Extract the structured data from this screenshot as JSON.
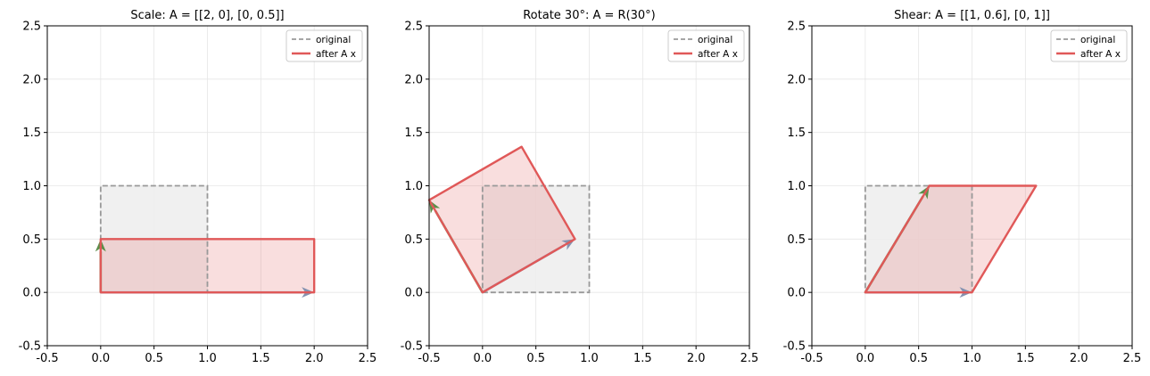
{
  "colors": {
    "original_stroke": "#999999",
    "original_fill": "#eeeeee",
    "transformed_stroke": "#e05858",
    "transformed_fill": "#f8dada",
    "e1_arrow": "#8492b0",
    "e2_arrow": "#5a8f4a",
    "grid": "#e6e6e6"
  },
  "chart_data": [
    {
      "type": "line",
      "title": "Scale: A = [[2, 0], [0, 0.5]]",
      "xlim": [
        -0.5,
        2.5
      ],
      "ylim": [
        -0.5,
        2.5
      ],
      "xticks": [
        "-0.5",
        "0.0",
        "0.5",
        "1.0",
        "1.5",
        "2.0",
        "2.5"
      ],
      "yticks": [
        "-0.5",
        "0.0",
        "0.5",
        "1.0",
        "1.5",
        "2.0",
        "2.5"
      ],
      "grid": true,
      "legend": {
        "position": "top-right",
        "entries": [
          "original",
          "after A x"
        ]
      },
      "original_polygon": [
        [
          0,
          0
        ],
        [
          1,
          0
        ],
        [
          1,
          1
        ],
        [
          0,
          1
        ]
      ],
      "transformed_polygon": [
        [
          0,
          0
        ],
        [
          2,
          0
        ],
        [
          2,
          0.5
        ],
        [
          0,
          0.5
        ]
      ],
      "basis_vectors": {
        "e1": [
          2,
          0
        ],
        "e2": [
          0,
          0.5
        ]
      }
    },
    {
      "type": "line",
      "title": "Rotate 30°: A = R(30°)",
      "xlim": [
        -0.5,
        2.5
      ],
      "ylim": [
        -0.5,
        2.5
      ],
      "xticks": [
        "-0.5",
        "0.0",
        "0.5",
        "1.0",
        "1.5",
        "2.0",
        "2.5"
      ],
      "yticks": [
        "-0.5",
        "0.0",
        "0.5",
        "1.0",
        "1.5",
        "2.0",
        "2.5"
      ],
      "grid": true,
      "legend": {
        "position": "top-right",
        "entries": [
          "original",
          "after A x"
        ]
      },
      "original_polygon": [
        [
          0,
          0
        ],
        [
          1,
          0
        ],
        [
          1,
          1
        ],
        [
          0,
          1
        ]
      ],
      "transformed_polygon": [
        [
          0,
          0
        ],
        [
          0.866,
          0.5
        ],
        [
          0.366,
          1.366
        ],
        [
          -0.5,
          0.866
        ]
      ],
      "basis_vectors": {
        "e1": [
          0.866,
          0.5
        ],
        "e2": [
          -0.5,
          0.866
        ]
      }
    },
    {
      "type": "line",
      "title": "Shear: A = [[1, 0.6], [0, 1]]",
      "xlim": [
        -0.5,
        2.5
      ],
      "ylim": [
        -0.5,
        2.5
      ],
      "xticks": [
        "-0.5",
        "0.0",
        "0.5",
        "1.0",
        "1.5",
        "2.0",
        "2.5"
      ],
      "yticks": [
        "-0.5",
        "0.0",
        "0.5",
        "1.0",
        "1.5",
        "2.0",
        "2.5"
      ],
      "grid": true,
      "legend": {
        "position": "top-right",
        "entries": [
          "original",
          "after A x"
        ]
      },
      "original_polygon": [
        [
          0,
          0
        ],
        [
          1,
          0
        ],
        [
          1,
          1
        ],
        [
          0,
          1
        ]
      ],
      "transformed_polygon": [
        [
          0,
          0
        ],
        [
          1,
          0
        ],
        [
          1.6,
          1
        ],
        [
          0.6,
          1
        ]
      ],
      "basis_vectors": {
        "e1": [
          1,
          0
        ],
        "e2": [
          0.6,
          1
        ]
      }
    }
  ]
}
